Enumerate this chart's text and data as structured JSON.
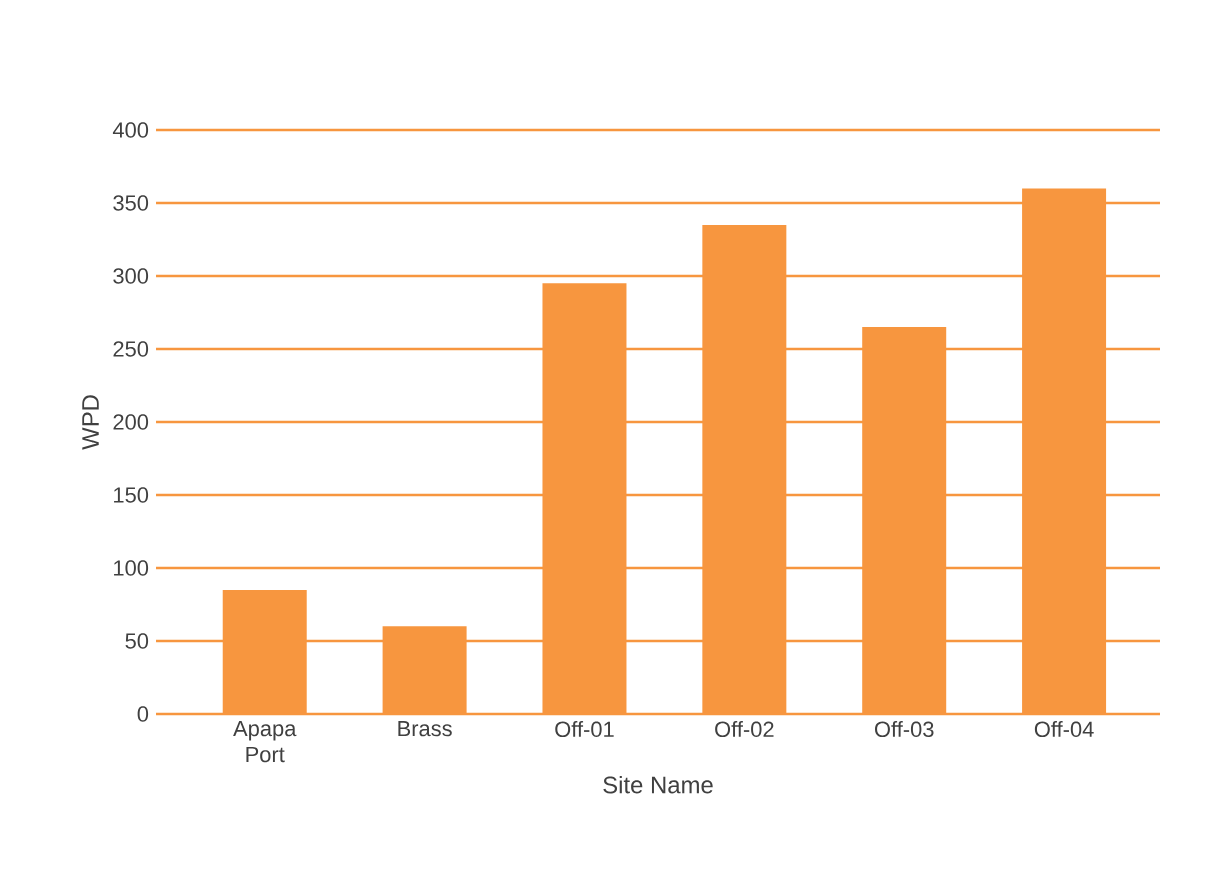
{
  "chart_data": {
    "type": "bar",
    "xlabel": "Site Name",
    "ylabel": "WPD",
    "categories": [
      "Apapa Port",
      "Brass",
      "Off-01",
      "Off-02",
      "Off-03",
      "Off-04"
    ],
    "values": [
      85,
      60,
      295,
      335,
      265,
      360
    ],
    "color": "#f7963f",
    "ylim": [
      0,
      400
    ],
    "yticks": [
      0,
      50,
      100,
      150,
      200,
      250,
      300,
      350,
      400
    ],
    "grid": "y"
  }
}
